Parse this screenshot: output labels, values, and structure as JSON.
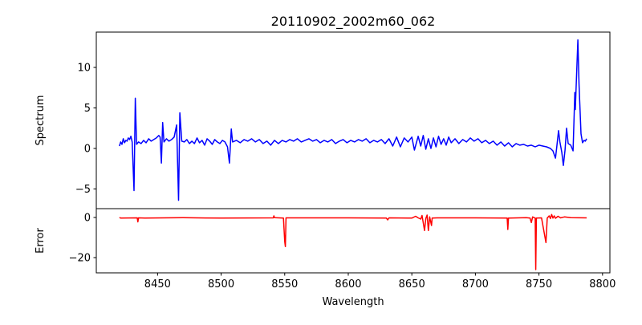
{
  "chart_data": [
    {
      "type": "line",
      "title": "20110902_2002m60_062",
      "ylabel": "Spectrum",
      "xlabel": "",
      "xlim": [
        8401.8,
        8805.8
      ],
      "ylim": [
        -7.43,
        14.36
      ],
      "yticks": [
        -5,
        0,
        5,
        10
      ],
      "ytick_labels": [
        "−5",
        "0",
        "5",
        "10"
      ],
      "color": "#0000ff",
      "points": [
        [
          8420,
          0.3
        ],
        [
          8421,
          0.8
        ],
        [
          8422,
          0.5
        ],
        [
          8423,
          1.2
        ],
        [
          8424,
          0.7
        ],
        [
          8425,
          1.0
        ],
        [
          8426,
          0.9
        ],
        [
          8427,
          1.3
        ],
        [
          8428,
          1.1
        ],
        [
          8429,
          1.5
        ],
        [
          8430,
          0.8
        ],
        [
          8431.5,
          -5.2
        ],
        [
          8432.5,
          6.2
        ],
        [
          8433.5,
          0.5
        ],
        [
          8435,
          0.8
        ],
        [
          8437,
          0.6
        ],
        [
          8439,
          1.0
        ],
        [
          8441,
          0.7
        ],
        [
          8443,
          1.2
        ],
        [
          8445,
          0.9
        ],
        [
          8447,
          1.1
        ],
        [
          8449,
          1.3
        ],
        [
          8451,
          1.6
        ],
        [
          8452,
          1.4
        ],
        [
          8453,
          -1.8
        ],
        [
          8454,
          3.2
        ],
        [
          8455,
          0.8
        ],
        [
          8457,
          1.2
        ],
        [
          8459,
          0.9
        ],
        [
          8461,
          1.1
        ],
        [
          8463,
          1.4
        ],
        [
          8465,
          2.9
        ],
        [
          8466.5,
          -6.4
        ],
        [
          8467.5,
          4.4
        ],
        [
          8469,
          0.9
        ],
        [
          8471,
          0.8
        ],
        [
          8473,
          1.1
        ],
        [
          8475,
          0.6
        ],
        [
          8477,
          0.9
        ],
        [
          8479,
          0.6
        ],
        [
          8481,
          1.3
        ],
        [
          8483,
          0.7
        ],
        [
          8485,
          1.0
        ],
        [
          8487,
          0.4
        ],
        [
          8489,
          1.2
        ],
        [
          8491,
          0.9
        ],
        [
          8493,
          0.5
        ],
        [
          8495,
          1.1
        ],
        [
          8497,
          0.8
        ],
        [
          8499,
          0.6
        ],
        [
          8501,
          1.0
        ],
        [
          8503,
          0.8
        ],
        [
          8505,
          0.2
        ],
        [
          8506.5,
          -1.8
        ],
        [
          8508,
          2.4
        ],
        [
          8509,
          0.8
        ],
        [
          8512,
          1.0
        ],
        [
          8515,
          0.7
        ],
        [
          8518,
          1.1
        ],
        [
          8521,
          0.9
        ],
        [
          8524,
          1.2
        ],
        [
          8527,
          0.8
        ],
        [
          8530,
          1.1
        ],
        [
          8533,
          0.6
        ],
        [
          8536,
          0.9
        ],
        [
          8539,
          0.4
        ],
        [
          8542,
          1.0
        ],
        [
          8545,
          0.6
        ],
        [
          8548,
          1.0
        ],
        [
          8551,
          0.8
        ],
        [
          8554,
          1.1
        ],
        [
          8557,
          0.9
        ],
        [
          8560,
          1.2
        ],
        [
          8563,
          0.8
        ],
        [
          8566,
          1.0
        ],
        [
          8569,
          1.2
        ],
        [
          8572,
          0.9
        ],
        [
          8575,
          1.1
        ],
        [
          8578,
          0.7
        ],
        [
          8581,
          1.0
        ],
        [
          8584,
          0.8
        ],
        [
          8587,
          1.1
        ],
        [
          8590,
          0.6
        ],
        [
          8593,
          0.9
        ],
        [
          8596,
          1.1
        ],
        [
          8599,
          0.7
        ],
        [
          8602,
          1.0
        ],
        [
          8605,
          0.8
        ],
        [
          8608,
          1.1
        ],
        [
          8611,
          0.9
        ],
        [
          8614,
          1.2
        ],
        [
          8617,
          0.7
        ],
        [
          8620,
          1.0
        ],
        [
          8623,
          0.8
        ],
        [
          8626,
          1.1
        ],
        [
          8629,
          0.6
        ],
        [
          8632,
          1.2
        ],
        [
          8635,
          0.3
        ],
        [
          8638,
          1.4
        ],
        [
          8641,
          0.2
        ],
        [
          8644,
          1.3
        ],
        [
          8647,
          0.8
        ],
        [
          8650,
          1.4
        ],
        [
          8652,
          -0.2
        ],
        [
          8655,
          1.5
        ],
        [
          8657,
          0.3
        ],
        [
          8659,
          1.6
        ],
        [
          8661,
          -0.1
        ],
        [
          8663,
          1.2
        ],
        [
          8665,
          0.0
        ],
        [
          8667,
          1.3
        ],
        [
          8669,
          0.2
        ],
        [
          8671,
          1.5
        ],
        [
          8673,
          0.5
        ],
        [
          8675,
          1.2
        ],
        [
          8677,
          0.4
        ],
        [
          8679,
          1.4
        ],
        [
          8681,
          0.7
        ],
        [
          8684,
          1.2
        ],
        [
          8687,
          0.6
        ],
        [
          8690,
          1.1
        ],
        [
          8693,
          0.8
        ],
        [
          8696,
          1.3
        ],
        [
          8699,
          0.9
        ],
        [
          8702,
          1.2
        ],
        [
          8705,
          0.7
        ],
        [
          8708,
          1.0
        ],
        [
          8711,
          0.6
        ],
        [
          8714,
          0.9
        ],
        [
          8717,
          0.4
        ],
        [
          8720,
          0.8
        ],
        [
          8723,
          0.3
        ],
        [
          8726,
          0.7
        ],
        [
          8729,
          0.2
        ],
        [
          8732,
          0.6
        ],
        [
          8735,
          0.4
        ],
        [
          8738,
          0.5
        ],
        [
          8741,
          0.3
        ],
        [
          8744,
          0.4
        ],
        [
          8747,
          0.2
        ],
        [
          8750,
          0.4
        ],
        [
          8753,
          0.3
        ],
        [
          8756,
          0.2
        ],
        [
          8759,
          0.0
        ],
        [
          8761,
          -0.3
        ],
        [
          8763,
          -1.2
        ],
        [
          8764,
          0.2
        ],
        [
          8765.4,
          2.2
        ],
        [
          8766.5,
          0.8
        ],
        [
          8768,
          -0.5
        ],
        [
          8769.2,
          -2.1
        ],
        [
          8770.5,
          -0.2
        ],
        [
          8771.7,
          2.5
        ],
        [
          8773,
          0.6
        ],
        [
          8775,
          0.4
        ],
        [
          8776.8,
          -0.3
        ],
        [
          8778.2,
          6.9
        ],
        [
          8778.6,
          4.8
        ],
        [
          8780.6,
          13.4
        ],
        [
          8781.5,
          8.0
        ],
        [
          8783.1,
          1.8
        ],
        [
          8784.3,
          0.7
        ],
        [
          8785.5,
          1.0
        ],
        [
          8786.5,
          0.9
        ],
        [
          8787.5,
          1.2
        ]
      ]
    },
    {
      "type": "line",
      "title": "",
      "ylabel": "Error",
      "xlabel": "Wavelength",
      "xlim": [
        8401.8,
        8805.8
      ],
      "ylim": [
        -27.6,
        4.4
      ],
      "xticks": [
        8450,
        8500,
        8550,
        8600,
        8650,
        8700,
        8750,
        8800
      ],
      "xtick_labels": [
        "8450",
        "8500",
        "8550",
        "8600",
        "8650",
        "8700",
        "8750",
        "8800"
      ],
      "yticks": [
        0,
        -20
      ],
      "ytick_labels": [
        "0",
        "−20"
      ],
      "color": "#ff0000",
      "points": [
        [
          8420,
          0
        ],
        [
          8421,
          -0.3
        ],
        [
          8434,
          -0.2
        ],
        [
          8434.5,
          -2.2
        ],
        [
          8435,
          -0.2
        ],
        [
          8440,
          -0.3
        ],
        [
          8470,
          -0.1
        ],
        [
          8500,
          -0.3
        ],
        [
          8541,
          -0.2
        ],
        [
          8541.5,
          0.8
        ],
        [
          8542,
          -0.1
        ],
        [
          8549,
          -0.3
        ],
        [
          8550,
          -12
        ],
        [
          8550.5,
          -14.5
        ],
        [
          8551,
          -0.2
        ],
        [
          8600,
          -0.2
        ],
        [
          8630,
          -0.3
        ],
        [
          8631,
          -1.2
        ],
        [
          8632,
          -0.2
        ],
        [
          8650,
          -0.3
        ],
        [
          8653,
          0.6
        ],
        [
          8655,
          -0.2
        ],
        [
          8657,
          -0.8
        ],
        [
          8658,
          1.0
        ],
        [
          8660,
          -6.5
        ],
        [
          8661,
          -0.5
        ],
        [
          8662,
          1.2
        ],
        [
          8663,
          -6.5
        ],
        [
          8664,
          0.3
        ],
        [
          8665.5,
          -4
        ],
        [
          8666,
          -0.3
        ],
        [
          8670,
          -0.2
        ],
        [
          8700,
          -0.2
        ],
        [
          8725,
          -0.3
        ],
        [
          8725.5,
          -6
        ],
        [
          8726,
          -0.3
        ],
        [
          8740,
          -0.1
        ],
        [
          8743,
          -0.3
        ],
        [
          8744,
          -2.5
        ],
        [
          8745,
          0.3
        ],
        [
          8747,
          -0.3
        ],
        [
          8747.5,
          -26
        ],
        [
          8748,
          -0.3
        ],
        [
          8752,
          -0.2
        ],
        [
          8755.5,
          -12.5
        ],
        [
          8756.5,
          -0.3
        ],
        [
          8758,
          0.8
        ],
        [
          8759,
          -0.5
        ],
        [
          8760,
          1.5
        ],
        [
          8761,
          -0.3
        ],
        [
          8762,
          0.8
        ],
        [
          8763,
          -0.4
        ],
        [
          8765,
          0.6
        ],
        [
          8767,
          -0.2
        ],
        [
          8770,
          0.3
        ],
        [
          8775,
          -0.1
        ],
        [
          8787.5,
          -0.2
        ]
      ]
    }
  ]
}
